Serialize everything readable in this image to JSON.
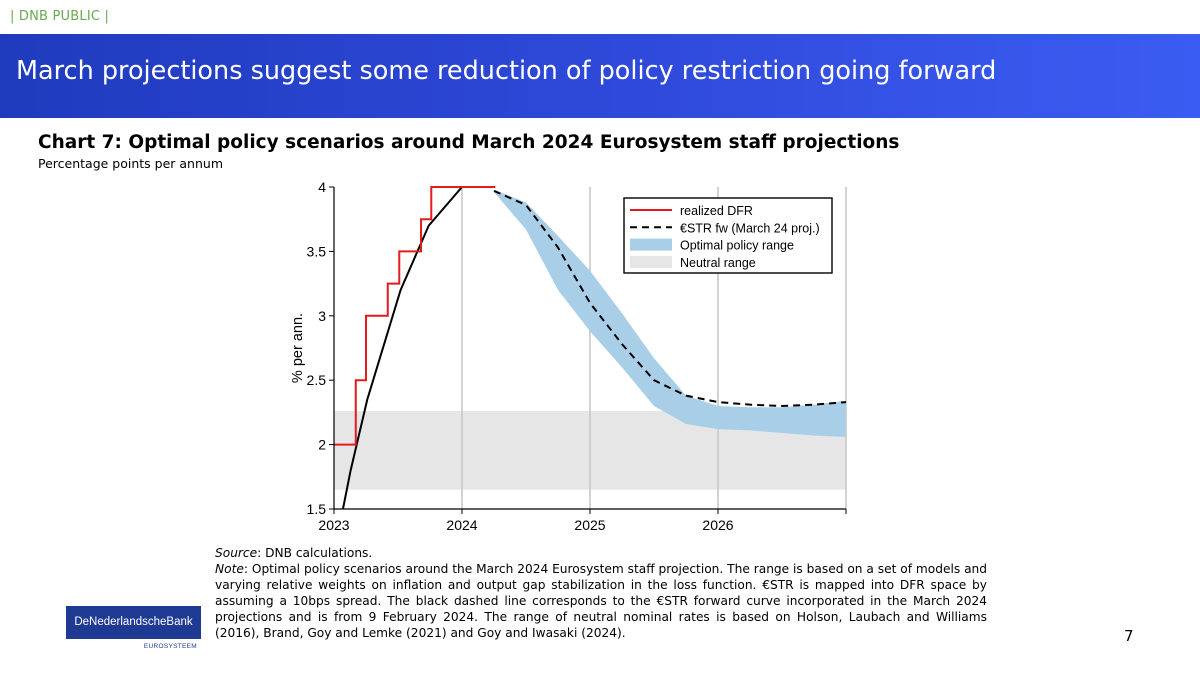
{
  "classification": "| DNB PUBLIC |",
  "slide_title": "March projections suggest some reduction of policy restriction going forward",
  "chart_title": "Chart 7: Optimal policy scenarios around March 2024 Eurosystem staff projections",
  "chart_subtitle": "Percentage points per annum",
  "notes": {
    "source_label": "Source",
    "source_text": ": DNB calculations.",
    "note_label": "Note",
    "note_text": ": Optimal policy scenarios around the March 2024 Eurosystem staff projection. The range is based on a set of models and varying relative weights on inflation and output gap stabilization in the loss function. €STR is mapped into DFR space by assuming a 10bps spread. The black dashed line corresponds to the €STR forward curve incorporated in the March 2024 projections and is from 9 February 2024. The range of neutral nominal rates is based on Holson, Laubach and Williams (2016), Brand, Goy and Lemke (2021) and Goy and Iwasaki (2024)."
  },
  "logo": {
    "name": "DeNederlandscheBank",
    "sub": "EUROSYSTEEM",
    "color": "#1f3a93"
  },
  "page_number": "7",
  "chart_data": {
    "type": "line",
    "ylabel": "% per ann.",
    "xlim": [
      2023.0,
      2027.0
    ],
    "ylim": [
      1.5,
      4.0
    ],
    "x_ticks": [
      2023,
      2024,
      2025,
      2026
    ],
    "y_ticks": [
      1.5,
      2,
      2.5,
      3,
      3.5,
      4
    ],
    "y_tick_labels": [
      "1.5",
      "2",
      "2.5",
      "3",
      "3.5",
      "4"
    ],
    "grid_x": true,
    "legend_position": "top-right",
    "legend": [
      {
        "label": "realized DFR",
        "style": "line",
        "color": "#e41a1c"
      },
      {
        "label": "€STR fw (March 24 proj.)",
        "style": "dashed",
        "color": "#000000"
      },
      {
        "label": "Optimal policy range",
        "style": "area",
        "color": "#a9cfe8"
      },
      {
        "label": "Neutral range",
        "style": "area",
        "color": "#e6e6e6"
      }
    ],
    "neutral_range": {
      "y_low": 1.65,
      "y_high": 2.26
    },
    "realized_dfr": {
      "color": "#e41a1c",
      "steps": [
        [
          2023.0,
          2.0
        ],
        [
          2.5,
          2023.17
        ],
        [
          3.0,
          2023.25
        ],
        [
          3.25,
          2023.42
        ],
        [
          3.5,
          2023.51
        ],
        [
          3.75,
          2023.68
        ],
        [
          4.0,
          2023.76
        ]
      ],
      "x_end": 2024.26
    },
    "black_path": {
      "color": "#000000",
      "x": [
        2023.07,
        2023.13,
        2023.26,
        2023.52,
        2023.74,
        2024.0,
        2024.24
      ],
      "y": [
        1.5,
        1.8,
        2.35,
        3.2,
        3.7,
        4.0,
        4.0
      ]
    },
    "estr_forward": {
      "color": "#000000",
      "x": [
        2024.25,
        2024.5,
        2024.75,
        2025.0,
        2025.25,
        2025.5,
        2025.75,
        2026.0,
        2026.25,
        2026.5,
        2026.75,
        2027.0
      ],
      "y": [
        3.97,
        3.86,
        3.53,
        3.1,
        2.78,
        2.5,
        2.38,
        2.33,
        2.31,
        2.3,
        2.31,
        2.33
      ]
    },
    "optimal_range": {
      "color": "#a9cfe8",
      "x": [
        2024.25,
        2024.5,
        2024.75,
        2025.0,
        2025.25,
        2025.5,
        2025.75,
        2026.0,
        2026.25,
        2026.5,
        2026.75,
        2027.0
      ],
      "upper": [
        3.98,
        3.88,
        3.62,
        3.35,
        3.02,
        2.67,
        2.38,
        2.3,
        2.29,
        2.29,
        2.31,
        2.34
      ],
      "lower": [
        3.96,
        3.67,
        3.2,
        2.88,
        2.6,
        2.3,
        2.16,
        2.12,
        2.11,
        2.09,
        2.07,
        2.06
      ]
    }
  }
}
